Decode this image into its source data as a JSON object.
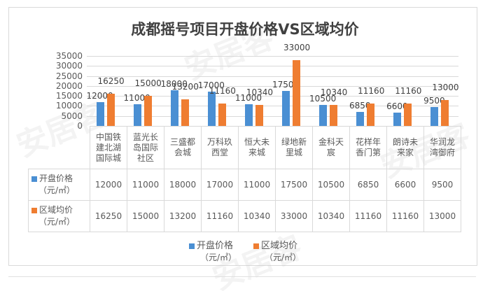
{
  "chart_data": {
    "type": "bar",
    "title": "成都摇号项目开盘价格VS区域均价",
    "xlabel": "",
    "ylabel": "",
    "ylim": [
      0,
      35000
    ],
    "yticks": [
      "35000",
      "30000",
      "25000",
      "20000",
      "15000",
      "10000",
      "5000",
      "0"
    ],
    "grid": true,
    "legend_position": "bottom",
    "categories": [
      "中国铁建北湖国际城",
      "蓝光长岛国际社区",
      "三盛都会城",
      "万科玖西堂",
      "恒大未来城",
      "绿地新里城",
      "金科天宸",
      "花样年香门第",
      "朗诗未来家",
      "华润龙湾御府"
    ],
    "category_lines": [
      [
        "中国铁",
        "建北湖",
        "国际城"
      ],
      [
        "蓝光长",
        "岛国际",
        "社区"
      ],
      [
        "三盛都",
        "会城"
      ],
      [
        "万科玖",
        "西堂"
      ],
      [
        "恒大未",
        "来城"
      ],
      [
        "绿地新",
        "里城"
      ],
      [
        "金科天",
        "宸"
      ],
      [
        "花样年",
        "香门第"
      ],
      [
        "朗诗未",
        "来家"
      ],
      [
        "华润龙",
        "湾御府"
      ]
    ],
    "series": [
      {
        "name": "开盘价格（元/㎡）",
        "name_line1": "开盘价格",
        "name_line2": "（元/㎡）",
        "color": "#4a8fd3",
        "values": [
          12000,
          11000,
          18000,
          17000,
          11000,
          17500,
          10500,
          6850,
          6600,
          9500
        ]
      },
      {
        "name": "区域均价（元/㎡）",
        "name_line1": "区域均价",
        "name_line2": "（元/㎡）",
        "color": "#ef7d31",
        "values": [
          16250,
          15000,
          13200,
          11160,
          10340,
          33000,
          10340,
          11160,
          11160,
          13000
        ]
      }
    ],
    "data_table": true
  },
  "watermark": "安居客"
}
